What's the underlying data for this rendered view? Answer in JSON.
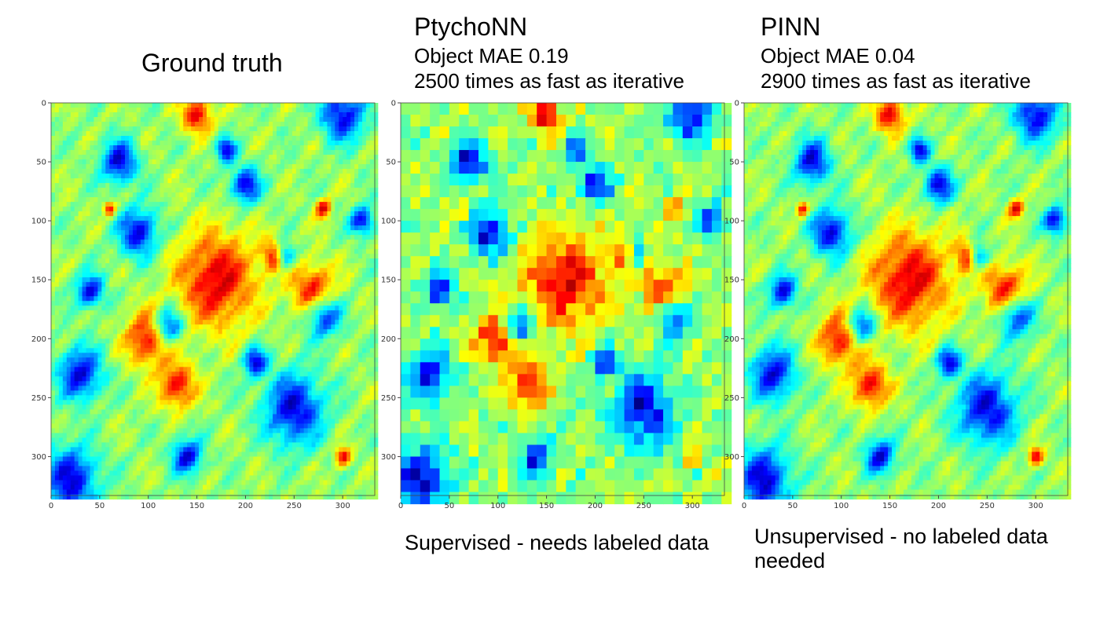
{
  "panels": [
    {
      "id": "ground-truth",
      "title": "Ground truth",
      "lines": [],
      "note": "",
      "style": "smooth",
      "seed": 11
    },
    {
      "id": "ptychonn",
      "title": "PtychoNN",
      "lines": [
        "Object MAE 0.19",
        "2500 times as fast as iterative"
      ],
      "note": "Supervised - needs labeled data",
      "style": "blocky",
      "seed": 11
    },
    {
      "id": "pinn",
      "title": "PINN",
      "lines": [
        "Object MAE 0.04",
        "2900 times as fast as iterative"
      ],
      "note": "Unsupervised - no labeled data needed",
      "style": "smooth",
      "seed": 11
    }
  ],
  "axes": {
    "x_ticks": [
      "0",
      "50",
      "100",
      "150",
      "200",
      "250",
      "300"
    ],
    "y_ticks": [
      "0",
      "50",
      "100",
      "150",
      "200",
      "250",
      "300"
    ],
    "range": [
      0,
      333
    ]
  },
  "colormap": "jet"
}
